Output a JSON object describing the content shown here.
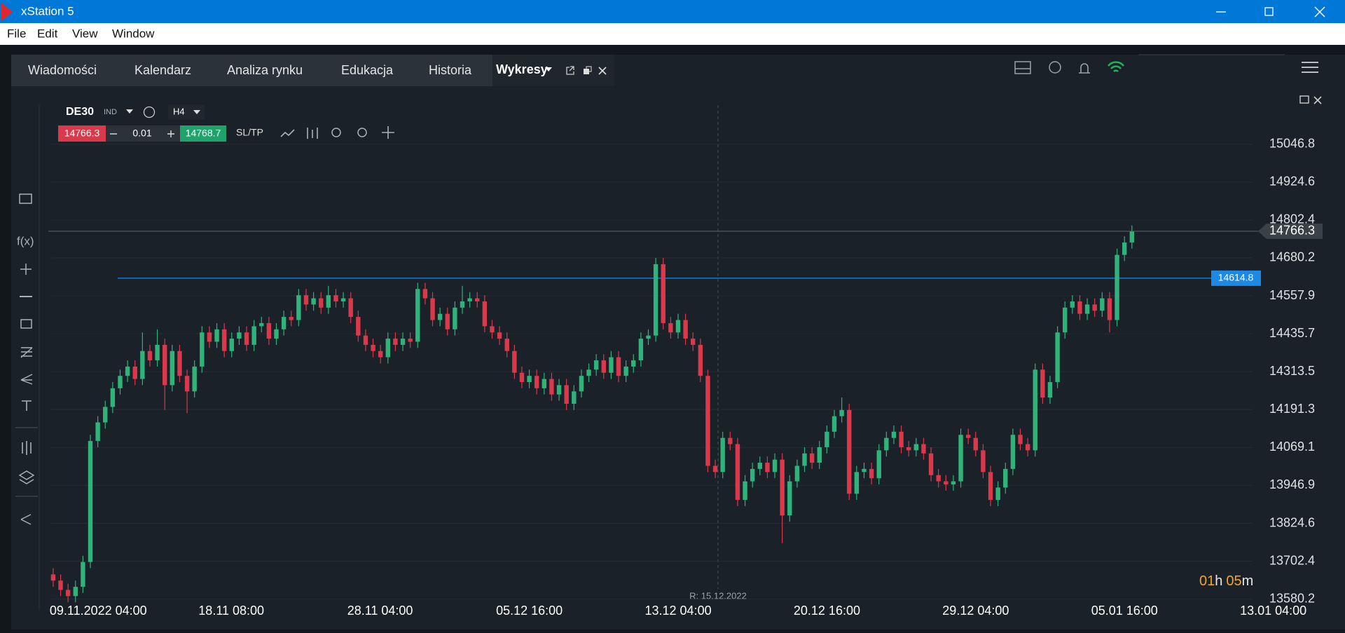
{
  "window": {
    "title": "xStation 5"
  },
  "menu": [
    "File",
    "Edit",
    "View",
    "Window"
  ],
  "tabs": [
    "Wiadomości",
    "Kalendarz",
    "Analiza rynku",
    "Edukacja",
    "Historia",
    "Wykresy"
  ],
  "instrument": {
    "symbol": "DE30",
    "class": "IND",
    "timeframe": "H4",
    "bid": "14766.3",
    "volume": "0.01",
    "ask": "14768.7",
    "sl_tp": "SL/TP"
  },
  "toolbar": {
    "function": "f(x)"
  },
  "countdown": {
    "hours": "01",
    "hours_unit": "h",
    "minutes": "05",
    "minutes_unit": "m"
  },
  "chart_data": {
    "type": "candlestick",
    "up_color": "#2fb37a",
    "down_color": "#d9394b",
    "cursor_label": "R: 15.12.2022",
    "current_price": 14766.3,
    "level_line": {
      "value": 14614.8,
      "color": "#1e88e5"
    },
    "ylim": [
      13580.2,
      15046.8
    ],
    "yticks": [
      15046.8,
      14924.6,
      14802.4,
      14680.2,
      14557.9,
      14435.7,
      14313.5,
      14191.3,
      14069.1,
      13946.9,
      13824.6,
      13702.4,
      13580.2
    ],
    "grid": true,
    "categories": [
      "09.11.2022 04:00",
      null,
      null,
      null,
      null,
      null,
      null,
      null,
      null,
      null,
      null,
      null,
      null,
      null,
      null,
      null,
      null,
      null,
      null,
      null,
      "18.11 08:00",
      null,
      null,
      null,
      null,
      null,
      null,
      null,
      null,
      null,
      null,
      null,
      null,
      null,
      null,
      null,
      null,
      null,
      null,
      null,
      "28.11 04:00",
      null,
      null,
      null,
      null,
      null,
      null,
      null,
      null,
      null,
      null,
      null,
      null,
      null,
      null,
      null,
      null,
      null,
      null,
      null,
      "05.12 16:00",
      null,
      null,
      null,
      null,
      null,
      null,
      null,
      null,
      null,
      null,
      null,
      null,
      null,
      null,
      null,
      null,
      null,
      null,
      null,
      "13.12 04:00",
      null,
      null,
      null,
      null,
      null,
      null,
      null,
      null,
      null,
      null,
      null,
      null,
      null,
      null,
      null,
      null,
      null,
      null,
      null,
      "20.12 16:00",
      null,
      null,
      null,
      null,
      null,
      null,
      null,
      null,
      null,
      null,
      null,
      null,
      null,
      null,
      null,
      null,
      null,
      null,
      null,
      "29.12 04:00",
      null,
      null,
      null,
      null,
      null,
      null,
      null,
      null,
      null,
      null,
      null,
      null,
      null,
      null,
      null,
      null,
      null,
      null,
      null,
      "05.01 16:00",
      null,
      null,
      null,
      null,
      null,
      null,
      null,
      null,
      null,
      null,
      null,
      null,
      null,
      null,
      null,
      null,
      null,
      null,
      null,
      "13.01 04:00"
    ],
    "open": [
      13660,
      13640,
      13610,
      13590,
      13620,
      13700,
      14090,
      14150,
      14200,
      14260,
      14300,
      14330,
      14290,
      14380,
      14350,
      14400,
      14270,
      14380,
      14300,
      14250,
      14330,
      14440,
      14410,
      14450,
      14380,
      14420,
      14440,
      14400,
      14460,
      14470,
      14420,
      14450,
      14490,
      14480,
      14560,
      14530,
      14550,
      14520,
      14560,
      14540,
      14550,
      14490,
      14430,
      14400,
      14380,
      14360,
      14420,
      14400,
      14420,
      14410,
      14580,
      14550,
      14480,
      14500,
      14450,
      14520,
      14540,
      14550,
      14540,
      14460,
      14440,
      14420,
      14380,
      14310,
      14280,
      14300,
      14260,
      14290,
      14240,
      14270,
      14210,
      14250,
      14300,
      14320,
      14350,
      14310,
      14360,
      14300,
      14330,
      14350,
      14420,
      14430,
      14660,
      14470,
      14440,
      14480,
      14420,
      14400,
      14300,
      14010,
      13990,
      14100,
      14080,
      13900,
      13960,
      14000,
      14020,
      13990,
      14030,
      13850,
      13960,
      14010,
      14050,
      14020,
      14070,
      14120,
      14170,
      14190,
      13920,
      13990,
      14000,
      13970,
      14060,
      14100,
      14120,
      14070,
      14060,
      14080,
      14050,
      13980,
      13960,
      13950,
      13960,
      14110,
      14100,
      14060,
      13990,
      13900,
      13940,
      14000,
      14110,
      14080,
      14060,
      14320,
      14230,
      14280,
      14440,
      14520,
      14540,
      14500,
      14530,
      14510,
      14550,
      14480,
      14690,
      14730,
      null,
      null,
      null,
      null,
      null,
      null,
      null,
      null,
      null,
      null,
      null,
      null,
      null,
      null,
      null
    ],
    "high": [
      13680,
      13660,
      13630,
      13640,
      13720,
      14110,
      14170,
      14220,
      14280,
      14320,
      14350,
      14350,
      14440,
      14400,
      14450,
      14420,
      14400,
      14400,
      14320,
      14350,
      14460,
      14460,
      14470,
      14470,
      14440,
      14460,
      14460,
      14480,
      14490,
      14490,
      14470,
      14510,
      14510,
      14580,
      14580,
      14570,
      14570,
      14590,
      14580,
      14570,
      14570,
      14510,
      14450,
      14420,
      14400,
      14440,
      14440,
      14440,
      14440,
      14600,
      14600,
      14570,
      14520,
      14520,
      14540,
      14590,
      14570,
      14570,
      14560,
      14480,
      14460,
      14440,
      14400,
      14330,
      14320,
      14320,
      14310,
      14310,
      14290,
      14290,
      14270,
      14320,
      14340,
      14370,
      14370,
      14380,
      14380,
      14350,
      14370,
      14440,
      14450,
      14680,
      14680,
      14490,
      14500,
      14500,
      14440,
      14420,
      14320,
      14030,
      14120,
      14120,
      14100,
      13980,
      14020,
      14040,
      14040,
      14050,
      14050,
      13980,
      14030,
      14070,
      14070,
      14090,
      14140,
      14190,
      14230,
      14210,
      14010,
      14020,
      14020,
      14080,
      14120,
      14140,
      14140,
      14090,
      14100,
      14100,
      14070,
      14000,
      13980,
      13980,
      14130,
      14130,
      14120,
      14080,
      14010,
      13960,
      14020,
      14130,
      14130,
      14100,
      14340,
      14340,
      14300,
      14460,
      14540,
      14560,
      14560,
      14550,
      14550,
      14570,
      14570,
      14710,
      14750,
      14785,
      null,
      null,
      null,
      null,
      null,
      null,
      null,
      null,
      null,
      null,
      null,
      null,
      null,
      null,
      null
    ],
    "low": [
      13620,
      13590,
      13570,
      13570,
      13600,
      13680,
      14070,
      14130,
      14180,
      14240,
      14280,
      14270,
      14270,
      14330,
      14330,
      14190,
      14250,
      14280,
      14180,
      14230,
      14310,
      14390,
      14390,
      14360,
      14360,
      14400,
      14380,
      14380,
      14440,
      14400,
      14400,
      14430,
      14460,
      14460,
      14510,
      14510,
      14500,
      14500,
      14520,
      14520,
      14470,
      14410,
      14380,
      14360,
      14340,
      14340,
      14380,
      14380,
      14390,
      14390,
      14530,
      14460,
      14460,
      14430,
      14430,
      14500,
      14520,
      14520,
      14440,
      14420,
      14400,
      14360,
      14290,
      14260,
      14260,
      14240,
      14240,
      14220,
      14220,
      14190,
      14190,
      14230,
      14280,
      14300,
      14290,
      14290,
      14280,
      14280,
      14310,
      14330,
      14400,
      14410,
      14450,
      14420,
      14420,
      14400,
      14380,
      14280,
      13990,
      13970,
      13970,
      14060,
      13880,
      13880,
      13940,
      13980,
      13970,
      13970,
      13760,
      13830,
      13940,
      13990,
      14000,
      14000,
      14050,
      14100,
      14150,
      13900,
      13900,
      13970,
      13950,
      13950,
      14040,
      14080,
      14050,
      14040,
      14040,
      14030,
      13960,
      13940,
      13930,
      13930,
      13940,
      14080,
      14040,
      13970,
      13880,
      13880,
      13920,
      13980,
      14060,
      14040,
      14040,
      14210,
      14210,
      14260,
      14420,
      14500,
      14480,
      14480,
      14490,
      14490,
      14440,
      14460,
      14670,
      14710,
      null,
      null,
      null,
      null,
      null,
      null,
      null,
      null,
      null,
      null,
      null,
      null,
      null,
      null,
      null
    ],
    "close": [
      13640,
      13610,
      13590,
      13620,
      13700,
      14090,
      14150,
      14200,
      14260,
      14300,
      14330,
      14290,
      14380,
      14350,
      14400,
      14270,
      14380,
      14300,
      14250,
      14330,
      14440,
      14410,
      14450,
      14380,
      14420,
      14440,
      14400,
      14460,
      14470,
      14420,
      14450,
      14490,
      14480,
      14560,
      14530,
      14550,
      14520,
      14560,
      14540,
      14550,
      14490,
      14430,
      14400,
      14380,
      14360,
      14420,
      14400,
      14420,
      14410,
      14580,
      14550,
      14480,
      14500,
      14450,
      14520,
      14540,
      14550,
      14540,
      14460,
      14440,
      14420,
      14380,
      14310,
      14280,
      14300,
      14260,
      14290,
      14240,
      14270,
      14210,
      14250,
      14300,
      14320,
      14350,
      14310,
      14360,
      14300,
      14330,
      14350,
      14420,
      14430,
      14660,
      14470,
      14440,
      14480,
      14420,
      14400,
      14300,
      14010,
      13990,
      14100,
      14080,
      13900,
      13960,
      14000,
      14020,
      13990,
      14030,
      13850,
      13960,
      14010,
      14050,
      14020,
      14070,
      14120,
      14170,
      14190,
      13920,
      13990,
      14000,
      13970,
      14060,
      14100,
      14120,
      14070,
      14060,
      14080,
      14050,
      13980,
      13960,
      13950,
      13960,
      14110,
      14100,
      14060,
      13990,
      13900,
      13940,
      14000,
      14110,
      14080,
      14060,
      14320,
      14230,
      14280,
      14440,
      14520,
      14540,
      14500,
      14530,
      14510,
      14550,
      14480,
      14690,
      14730,
      14766.3,
      null,
      null,
      null,
      null,
      null,
      null,
      null,
      null,
      null,
      null,
      null,
      null,
      null,
      null,
      null
    ]
  }
}
